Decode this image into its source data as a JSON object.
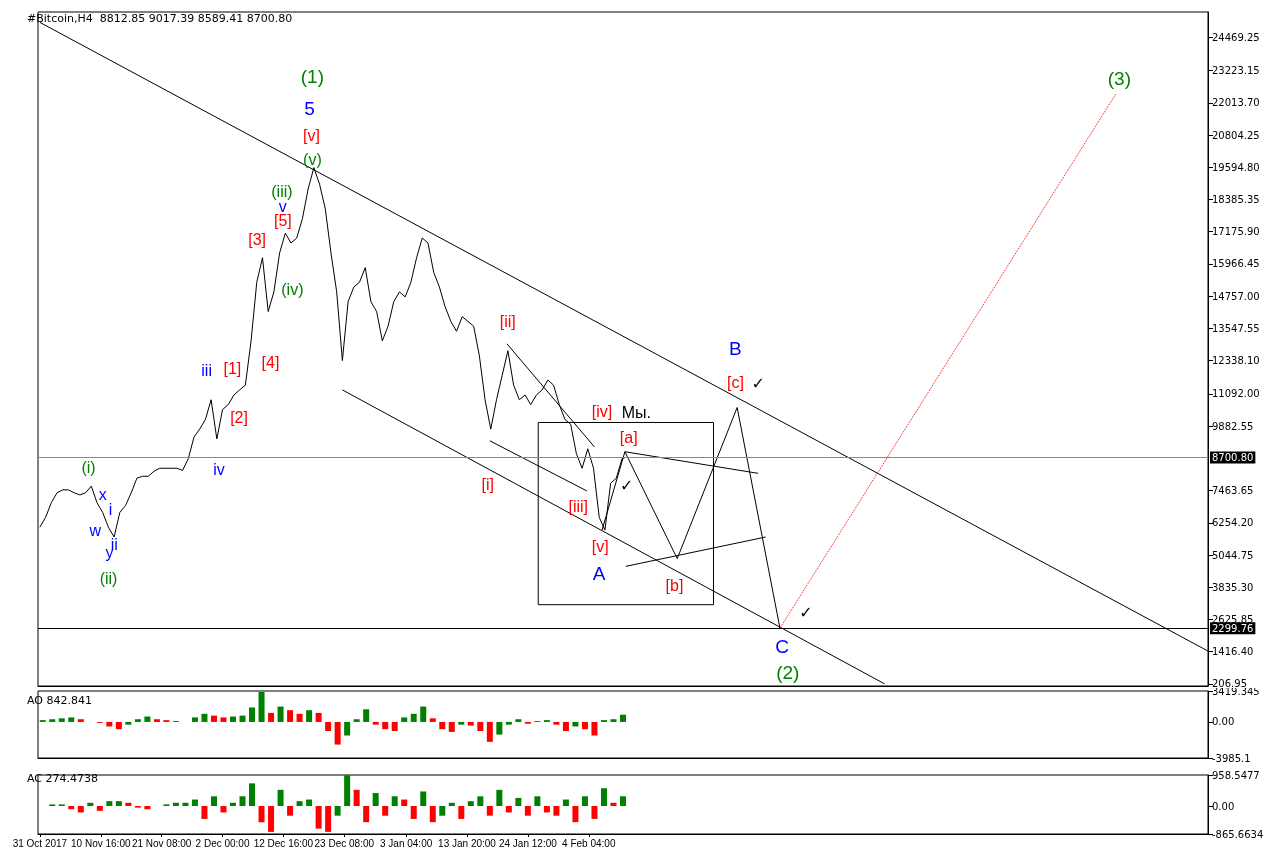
{
  "chart_data": [
    {
      "type": "line",
      "title": "#Bitcoin,H4  8812.85 9017.39 8589.41 8700.80",
      "grid": false,
      "marker": "none",
      "tick_labels": "y",
      "xlim": [
        "2017-10-30T16:00",
        "2018-05-23T16:00"
      ],
      "ylim": [
        130,
        25420
      ],
      "yticks": [
        24469.25,
        23223.15,
        {
          "value": 22013.7,
          "label": "22013.70"
        },
        20804.25,
        {
          "value": 19594.8,
          "label": "19594.80"
        },
        18385.35,
        {
          "value": 17175.9,
          "label": "17175.90"
        },
        15966.45,
        {
          "value": 14757,
          "label": "14757.00"
        },
        13547.55,
        {
          "value": 12338.1,
          "label": "12338.10"
        },
        {
          "value": 11092,
          "label": "11092.00"
        },
        9882.55,
        7463.65,
        {
          "value": 6254.2,
          "label": "6254.20"
        },
        5044.75,
        {
          "value": 3835.3,
          "label": "3835.30"
        },
        2625.85,
        {
          "value": 1416.4,
          "label": "1416.40"
        },
        206.95
      ],
      "series": [
        {
          "color": "#000000",
          "x": [
            "2017-10-31",
            "2017-11-01",
            "2017-11-02",
            "2017-11-03",
            "2017-11-04",
            "2017-11-05",
            "2017-11-06",
            "2017-11-07",
            "2017-11-08",
            "2017-11-09",
            "2017-11-10",
            "2017-11-11",
            "2017-11-12",
            "2017-11-13",
            "2017-11-14",
            "2017-11-15",
            "2017-11-16",
            "2017-11-17",
            "2017-11-18",
            "2017-11-19",
            "2017-11-20",
            "2017-11-21",
            "2017-11-22",
            "2017-11-23",
            "2017-11-24",
            "2017-11-25",
            "2017-11-26",
            "2017-11-27",
            "2017-11-28",
            "2017-11-29",
            "2017-11-30",
            "2017-12-01",
            "2017-12-02",
            "2017-12-03",
            "2017-12-04",
            "2017-12-05",
            "2017-12-06",
            "2017-12-07",
            "2017-12-08",
            "2017-12-09",
            "2017-12-10",
            "2017-12-11",
            "2017-12-12",
            "2017-12-13",
            "2017-12-14",
            "2017-12-15",
            "2017-12-16",
            "2017-12-17",
            "2017-12-18",
            "2017-12-19",
            "2017-12-20",
            "2017-12-21",
            "2017-12-22",
            "2017-12-23",
            "2017-12-24",
            "2017-12-25",
            "2017-12-26",
            "2017-12-27",
            "2017-12-28",
            "2017-12-29",
            "2017-12-30",
            "2017-12-31",
            "2018-01-01",
            "2018-01-02",
            "2018-01-03",
            "2018-01-04",
            "2018-01-05",
            "2018-01-06",
            "2018-01-07",
            "2018-01-08",
            "2018-01-09",
            "2018-01-10",
            "2018-01-11",
            "2018-01-12",
            "2018-01-13",
            "2018-01-14",
            "2018-01-15",
            "2018-01-16",
            "2018-01-17",
            "2018-01-18",
            "2018-01-19",
            "2018-01-20",
            "2018-01-21",
            "2018-01-22",
            "2018-01-23",
            "2018-01-24",
            "2018-01-25",
            "2018-01-26",
            "2018-01-27",
            "2018-01-28",
            "2018-01-29",
            "2018-01-30",
            "2018-01-31",
            "2018-02-01",
            "2018-02-02",
            "2018-02-03",
            "2018-02-04",
            "2018-02-05",
            "2018-02-06",
            "2018-02-07",
            "2018-02-08",
            "2018-02-09",
            "2018-02-10",
            "2018-02-10T12:00"
          ],
          "values": [
            6090,
            6460,
            7010,
            7380,
            7490,
            7490,
            7380,
            7300,
            7380,
            7630,
            7010,
            6640,
            6090,
            5720,
            6640,
            6900,
            7380,
            7930,
            8000,
            8000,
            8190,
            8300,
            8300,
            8300,
            8300,
            8220,
            8660,
            9470,
            9770,
            10130,
            10870,
            9400,
            10500,
            10690,
            11050,
            11240,
            11420,
            13080,
            15280,
            16200,
            14180,
            14920,
            16380,
            17120,
            16750,
            16940,
            17670,
            18780,
            19580,
            18960,
            18040,
            16380,
            14920,
            12340,
            14550,
            15100,
            15280,
            15830,
            14550,
            14180,
            13080,
            13630,
            14550,
            14920,
            14730,
            15280,
            16200,
            16940,
            16750,
            15650,
            15100,
            14360,
            13810,
            13440,
            13990,
            13810,
            13630,
            12520,
            10870,
            9770,
            10870,
            11790,
            12710,
            11420,
            10870,
            11050,
            10690,
            11050,
            11240,
            11610,
            11420,
            10690,
            10130,
            9950,
            8850,
            8300,
            9030,
            8300,
            6460,
            5980,
            7740,
            7930,
            8660,
            8700
          ]
        },
        {
          "type": "line",
          "color": "#000000",
          "x": [
            "2017-10-31",
            "2018-05-23T16:00"
          ],
          "values": [
            25030,
            1440
          ]
        },
        {
          "type": "line",
          "color": "#000000",
          "x": [
            "2017-12-23",
            "2018-03-28"
          ],
          "values": [
            11240,
            210
          ]
        },
        {
          "type": "line",
          "color": "#000000",
          "x": [
            "2018-01-17T20:00",
            "2018-02-03T20:00"
          ],
          "values": [
            9330,
            7450
          ]
        },
        {
          "type": "line",
          "color": "#000000",
          "x": [
            "2018-01-20T20:00",
            "2018-02-05T04:00"
          ],
          "values": [
            12970,
            9100
          ]
        },
        {
          "type": "line",
          "color": "#000000",
          "x": [
            "2018-02-06T12:00",
            "2018-02-10T12:00",
            "2018-02-19T16:00",
            "2018-03-02T04:00",
            "2018-03-09T16:00"
          ],
          "values": [
            5980,
            8920,
            4910,
            10580,
            2300
          ]
        },
        {
          "type": "line",
          "color": "#000000",
          "x": [
            "2018-02-10T12:00",
            "2018-03-05T20:00"
          ],
          "values": [
            8920,
            8110
          ]
        },
        {
          "type": "line",
          "color": "#000000",
          "x": [
            "2018-02-10T16:00",
            "2018-03-07T04:00"
          ],
          "values": [
            4620,
            5720
          ]
        },
        {
          "type": "line",
          "color": "#ff0000",
          "line_style": "dotted",
          "x": [
            "2018-03-09T16:00",
            "2018-05-07T12:00"
          ],
          "values": [
            2300,
            22340
          ]
        }
      ],
      "ref_lines": [
        {
          "axis": "y",
          "value": 8700.8,
          "label": "8700.80",
          "color": "#ff6600"
        },
        {
          "axis": "y",
          "value": 2299.76,
          "label": "2299.76",
          "color": "#000000"
        }
      ],
      "annotations": [
        "(1)",
        "5",
        "[v]",
        "(v)",
        "(iii)",
        "v",
        "[5]",
        "[3]",
        "(iv)",
        "[4]",
        "iii",
        "[1]",
        "[2]",
        "iv",
        "(i)",
        "x",
        "i",
        "w",
        "y",
        "ii",
        "(ii)",
        "[ii]",
        "[i]",
        "[iv]",
        "Мы.",
        "[a]",
        "✓",
        "[iii]",
        "[v]",
        "A",
        "[b]",
        "B",
        "[c]",
        "✓",
        "C",
        "(2)",
        "✓",
        "(3)"
      ]
    },
    {
      "type": "bar",
      "title": "AO 842.841",
      "grid": false,
      "tick_labels": "y",
      "xlim": [
        "2017-10-30T16:00",
        "2018-05-23T16:00"
      ],
      "ylim": [
        -3985.1,
        3419.345
      ],
      "yticks": [
        3419.345,
        {
          "value": 0,
          "label": "0.00"
        },
        -3985.1
      ],
      "x": [
        "2017-10-31T12:00",
        "2017-11-02T04:00",
        "2017-11-03T20:00",
        "2017-11-05T12:00",
        "2017-11-07T04:00",
        "2017-11-08T20:00",
        "2017-11-10T12:00",
        "2017-11-12T04:00",
        "2017-11-13T20:00",
        "2017-11-15T12:00",
        "2017-11-17T04:00",
        "2017-11-18T20:00",
        "2017-11-20T12:00",
        "2017-11-22T04:00",
        "2017-11-23T20:00",
        "2017-11-25T12:00",
        "2017-11-27T04:00",
        "2017-11-28T20:00",
        "2017-11-30T12:00",
        "2017-12-02T04:00",
        "2017-12-03T20:00",
        "2017-12-05T12:00",
        "2017-12-07T04:00",
        "2017-12-08T20:00",
        "2017-12-10T12:00",
        "2017-12-12T04:00",
        "2017-12-13T20:00",
        "2017-12-15T12:00",
        "2017-12-17T04:00",
        "2017-12-18T20:00",
        "2017-12-20T12:00",
        "2017-12-22T04:00",
        "2017-12-23T20:00",
        "2017-12-25T12:00",
        "2017-12-27T04:00",
        "2017-12-28T20:00",
        "2017-12-30T12:00",
        "2018-01-01T04:00",
        "2018-01-02T20:00",
        "2018-01-04T12:00",
        "2018-01-06T04:00",
        "2018-01-07T20:00",
        "2018-01-09T12:00",
        "2018-01-11T04:00",
        "2018-01-12T20:00",
        "2018-01-14T12:00",
        "2018-01-16T04:00",
        "2018-01-17T20:00",
        "2018-01-19T12:00",
        "2018-01-21T04:00",
        "2018-01-22T20:00",
        "2018-01-24T12:00",
        "2018-01-26T04:00",
        "2018-01-27T20:00",
        "2018-01-29T12:00",
        "2018-01-31T04:00",
        "2018-02-01T20:00",
        "2018-02-03T12:00",
        "2018-02-05T04:00",
        "2018-02-06T20:00",
        "2018-02-08T12:00",
        "2018-02-10T04:00"
      ],
      "values": [
        200,
        300,
        400,
        500,
        300,
        0,
        -100,
        -500,
        -800,
        -300,
        300,
        600,
        300,
        200,
        100,
        0,
        500,
        900,
        700,
        500,
        600,
        700,
        1600,
        3300,
        1000,
        1700,
        1300,
        900,
        1300,
        1000,
        -1000,
        -2500,
        -1500,
        300,
        1400,
        -300,
        -800,
        -1000,
        500,
        900,
        1700,
        400,
        -800,
        -1100,
        -300,
        -400,
        -1000,
        -2200,
        -1400,
        -300,
        300,
        -200,
        100,
        200,
        -300,
        -1000,
        -500,
        -800,
        -1500,
        200,
        300,
        800
      ],
      "colors": [
        "#008000",
        "#008000",
        "#008000",
        "#008000",
        "#ff0000",
        "#ff0000",
        "#ff0000",
        "#ff0000",
        "#ff0000",
        "#008000",
        "#008000",
        "#008000",
        "#ff0000",
        "#ff0000",
        "#ff0000",
        "#ff0000",
        "#008000",
        "#008000",
        "#ff0000",
        "#ff0000",
        "#008000",
        "#008000",
        "#008000",
        "#008000",
        "#ff0000",
        "#008000",
        "#ff0000",
        "#ff0000",
        "#008000",
        "#ff0000",
        "#ff0000",
        "#ff0000",
        "#008000",
        "#008000",
        "#008000",
        "#ff0000",
        "#ff0000",
        "#ff0000",
        "#008000",
        "#008000",
        "#008000",
        "#ff0000",
        "#ff0000",
        "#ff0000",
        "#008000",
        "#ff0000",
        "#ff0000",
        "#ff0000",
        "#008000",
        "#008000",
        "#008000",
        "#ff0000",
        "#008000",
        "#008000",
        "#ff0000",
        "#ff0000",
        "#008000",
        "#ff0000",
        "#ff0000",
        "#008000",
        "#008000",
        "#008000"
      ]
    },
    {
      "type": "bar",
      "title": "AC 274.4738",
      "grid": false,
      "xlim": [
        "2017-10-30T16:00",
        "2018-05-23T16:00"
      ],
      "xticks": [
        {
          "value": "2017-10-31T00:00",
          "label": "31 Oct 2017"
        },
        {
          "value": "2017-11-10T16:00",
          "label": "10 Nov 16:00"
        },
        {
          "value": "2017-11-21T08:00",
          "label": "21 Nov 08:00"
        },
        {
          "value": "2017-12-02T00:00",
          "label": "2 Dec 00:00"
        },
        {
          "value": "2017-12-12T16:00",
          "label": "12 Dec 16:00"
        },
        {
          "value": "2017-12-23T08:00",
          "label": "23 Dec 08:00"
        },
        {
          "value": "2018-01-03T04:00",
          "label": "3 Jan 04:00"
        },
        {
          "value": "2018-01-13T20:00",
          "label": "13 Jan 20:00"
        },
        {
          "value": "2018-01-24T12:00",
          "label": "24 Jan 12:00"
        },
        {
          "value": "2018-02-04T04:00",
          "label": "4 Feb 04:00"
        }
      ],
      "ylim": [
        -865.6634,
        958.5477
      ],
      "yticks": [
        958.5477,
        {
          "value": 0,
          "label": "0.00"
        },
        -865.6634
      ],
      "x": [
        "2017-10-31T12:00",
        "2017-11-02T04:00",
        "2017-11-03T20:00",
        "2017-11-05T12:00",
        "2017-11-07T04:00",
        "2017-11-08T20:00",
        "2017-11-10T12:00",
        "2017-11-12T04:00",
        "2017-11-13T20:00",
        "2017-11-15T12:00",
        "2017-11-17T04:00",
        "2017-11-18T20:00",
        "2017-11-20T12:00",
        "2017-11-22T04:00",
        "2017-11-23T20:00",
        "2017-11-25T12:00",
        "2017-11-27T04:00",
        "2017-11-28T20:00",
        "2017-11-30T12:00",
        "2017-12-02T04:00",
        "2017-12-03T20:00",
        "2017-12-05T12:00",
        "2017-12-07T04:00",
        "2017-12-08T20:00",
        "2017-12-10T12:00",
        "2017-12-12T04:00",
        "2017-12-13T20:00",
        "2017-12-15T12:00",
        "2017-12-17T04:00",
        "2017-12-18T20:00",
        "2017-12-20T12:00",
        "2017-12-22T04:00",
        "2017-12-23T20:00",
        "2017-12-25T12:00",
        "2017-12-27T04:00",
        "2017-12-28T20:00",
        "2017-12-30T12:00",
        "2018-01-01T04:00",
        "2018-01-02T20:00",
        "2018-01-04T12:00",
        "2018-01-06T04:00",
        "2018-01-07T20:00",
        "2018-01-09T12:00",
        "2018-01-11T04:00",
        "2018-01-12T20:00",
        "2018-01-14T12:00",
        "2018-01-16T04:00",
        "2018-01-17T20:00",
        "2018-01-19T12:00",
        "2018-01-21T04:00",
        "2018-01-22T20:00",
        "2018-01-24T12:00",
        "2018-01-26T04:00",
        "2018-01-27T20:00",
        "2018-01-29T12:00",
        "2018-01-31T04:00",
        "2018-02-01T20:00",
        "2018-02-03T12:00",
        "2018-02-05T04:00",
        "2018-02-06T20:00",
        "2018-02-08T12:00",
        "2018-02-10T04:00"
      ],
      "values": [
        0,
        50,
        50,
        -100,
        -200,
        100,
        -150,
        150,
        150,
        100,
        -50,
        -100,
        0,
        50,
        100,
        100,
        200,
        -400,
        300,
        -200,
        100,
        300,
        700,
        -500,
        -800,
        500,
        -300,
        150,
        200,
        -700,
        -800,
        -300,
        950,
        500,
        -500,
        400,
        -300,
        300,
        200,
        -400,
        450,
        -500,
        -300,
        100,
        -400,
        150,
        300,
        -300,
        500,
        -200,
        250,
        -300,
        300,
        -200,
        -300,
        200,
        -500,
        300,
        -400,
        550,
        100,
        300
      ],
      "colors": [
        "#008000",
        "#008000",
        "#008000",
        "#ff0000",
        "#ff0000",
        "#008000",
        "#ff0000",
        "#008000",
        "#008000",
        "#ff0000",
        "#ff0000",
        "#ff0000",
        "#008000",
        "#008000",
        "#008000",
        "#008000",
        "#008000",
        "#ff0000",
        "#008000",
        "#ff0000",
        "#008000",
        "#008000",
        "#008000",
        "#ff0000",
        "#ff0000",
        "#008000",
        "#ff0000",
        "#008000",
        "#008000",
        "#ff0000",
        "#ff0000",
        "#008000",
        "#008000",
        "#ff0000",
        "#ff0000",
        "#008000",
        "#ff0000",
        "#008000",
        "#ff0000",
        "#ff0000",
        "#008000",
        "#ff0000",
        "#008000",
        "#008000",
        "#ff0000",
        "#008000",
        "#008000",
        "#ff0000",
        "#008000",
        "#ff0000",
        "#008000",
        "#ff0000",
        "#008000",
        "#ff0000",
        "#ff0000",
        "#008000",
        "#ff0000",
        "#008000",
        "#ff0000",
        "#008000",
        "#ff0000",
        "#008000"
      ]
    }
  ]
}
